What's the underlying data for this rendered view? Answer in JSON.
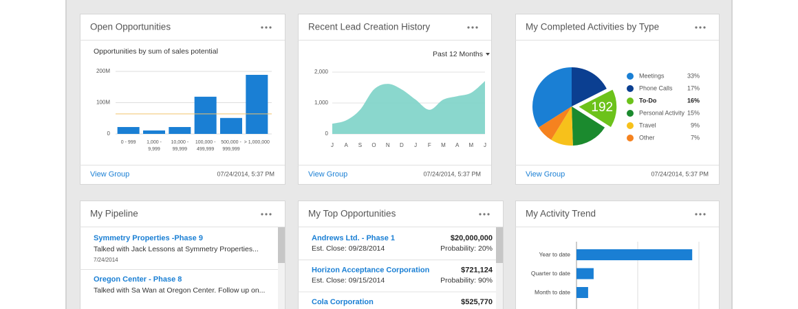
{
  "cards": [
    {
      "title": "Open Opportunities",
      "chart": {
        "type": "bar",
        "subtitle": "Opportunities by sum of sales potential",
        "categories": [
          "0 - 999",
          "1,000 - 9,999",
          "10,000 - 99,999",
          "100,000 - 499,999",
          "500,000 - 999,999",
          "> 1,000,000"
        ],
        "values": [
          22,
          11,
          22,
          119,
          51,
          189
        ],
        "color": "#1a7fd4",
        "ylim": [
          0,
          200
        ],
        "yticks": [
          0,
          {
            "value": 100,
            "label": "100M"
          },
          {
            "value": 200,
            "label": "200M"
          }
        ],
        "reference_line": 64,
        "reference_color": "#f2c36b",
        "grid": true
      },
      "footer": {
        "link": "View Group",
        "timestamp": "07/24/2014, 5:37 PM"
      }
    },
    {
      "title": "Recent Lead Creation History",
      "chart": {
        "type": "area",
        "period": "Past 12 Months",
        "categories": [
          "J",
          "A",
          "S",
          "O",
          "N",
          "D",
          "J",
          "F",
          "M",
          "A",
          "M",
          "J"
        ],
        "values": [
          330,
          440,
          780,
          1440,
          1620,
          1440,
          1110,
          780,
          1110,
          1220,
          1330,
          1710
        ],
        "color": "#7dd3c8",
        "ylim": [
          0,
          2000
        ],
        "yticks": [
          0,
          {
            "value": 1000,
            "label": "1,000"
          },
          {
            "value": 2000,
            "label": "2,000"
          }
        ],
        "grid": true
      },
      "footer": {
        "link": "View Group",
        "timestamp": "07/24/2014, 5:37 PM"
      }
    },
    {
      "title": "My Completed Activities by Type",
      "chart": {
        "type": "pie",
        "categories": [
          "Meetings",
          "Phone Calls",
          "To-Do",
          "Personal Activity",
          "Travel",
          "Other"
        ],
        "values": [
          33,
          17,
          16,
          15,
          9,
          7
        ],
        "value_labels": [
          "33%",
          "17%",
          "16%",
          "15%",
          "9%",
          "7%"
        ],
        "colors": [
          "#1a7fd4",
          "#0b3f91",
          "#6cc21b",
          "#1b8a2e",
          "#f7c11b",
          "#f5821f"
        ],
        "highlight": 2,
        "highlight_count": 192
      },
      "footer": {
        "link": "View Group",
        "timestamp": "07/24/2014, 5:37 PM"
      }
    },
    {
      "title": "My Pipeline",
      "items": [
        {
          "name": "Symmetry Properties -Phase 9",
          "description": "Talked with Jack Lessons at Symmetry Properties...",
          "date": "7/24/2014"
        },
        {
          "name": "Oregon Center - Phase 8",
          "description": "Talked with Sa Wan at Oregon Center. Follow up on..."
        }
      ]
    },
    {
      "title": "My Top Opportunities",
      "items": [
        {
          "name": "Andrews Ltd. - Phase 1",
          "amount": "$20,000,000",
          "close": "Est. Close: 09/28/2014",
          "probability": "Probability: 20%"
        },
        {
          "name": "Horizon Acceptance Corporation",
          "amount": "$721,124",
          "close": "Est. Close: 09/15/2014",
          "probability": "Probability: 90%"
        },
        {
          "name": "Cola Corporation",
          "amount": "$525,770"
        }
      ]
    },
    {
      "title": "My Activity Trend",
      "chart": {
        "type": "hbar",
        "categories": [
          "Year to date",
          "Quarter to date",
          "Month to date"
        ],
        "values": [
          1.89,
          0.28,
          0.19
        ],
        "color": "#1a7fd4",
        "xlim": [
          0,
          2
        ],
        "grid_lines": [
          0,
          1,
          2
        ]
      }
    }
  ]
}
